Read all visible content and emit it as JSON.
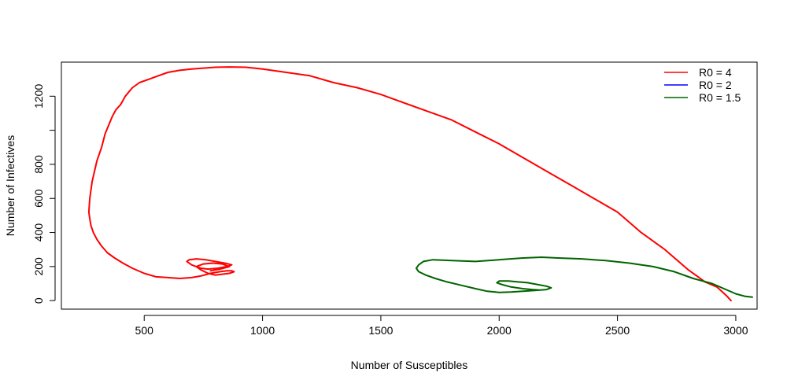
{
  "chart_data": {
    "type": "line",
    "title": "",
    "xlabel": "Number of Susceptibles",
    "ylabel": "Number of Infectives",
    "xlim": [
      150,
      3090
    ],
    "ylim": [
      -50,
      1400
    ],
    "x_ticks": [
      500,
      1000,
      1500,
      2000,
      2500,
      3000
    ],
    "y_ticks": [
      0,
      200,
      400,
      600,
      800,
      1200
    ],
    "y_tick_marks": [
      0,
      200,
      400,
      600,
      800,
      1000,
      1200
    ],
    "grid": false,
    "legend_position": "top-right",
    "series": [
      {
        "name": "R0 = 4",
        "color": "#ff0000",
        "x": [
          2980,
          2960,
          2920,
          2870,
          2800,
          2700,
          2600,
          2500,
          2400,
          2300,
          2200,
          2100,
          2000,
          1900,
          1800,
          1700,
          1600,
          1500,
          1400,
          1300,
          1200,
          1100,
          1000,
          930,
          860,
          800,
          750,
          700,
          650,
          600,
          560,
          520,
          480,
          450,
          420,
          400,
          380,
          365,
          350,
          335,
          320,
          310,
          300,
          290,
          280,
          275,
          270,
          268,
          266,
          270,
          275,
          285,
          300,
          320,
          345,
          375,
          410,
          450,
          500,
          550,
          600,
          650,
          700,
          740,
          780,
          820,
          850,
          870,
          880,
          860,
          830,
          800,
          770,
          740,
          720,
          700,
          680,
          690,
          720,
          760,
          800,
          840,
          870,
          850,
          810,
          770,
          740,
          720,
          750,
          790,
          830,
          860,
          820,
          780
        ],
        "y": [
          0,
          30,
          80,
          110,
          180,
          300,
          400,
          520,
          600,
          680,
          760,
          840,
          920,
          990,
          1060,
          1110,
          1160,
          1210,
          1250,
          1280,
          1320,
          1340,
          1360,
          1370,
          1372,
          1370,
          1365,
          1360,
          1352,
          1340,
          1320,
          1300,
          1280,
          1250,
          1200,
          1150,
          1120,
          1080,
          1030,
          980,
          900,
          860,
          820,
          760,
          700,
          650,
          600,
          560,
          520,
          480,
          440,
          400,
          360,
          320,
          280,
          250,
          220,
          190,
          160,
          140,
          135,
          130,
          135,
          145,
          160,
          170,
          175,
          175,
          170,
          160,
          155,
          150,
          160,
          180,
          200,
          210,
          230,
          240,
          245,
          240,
          230,
          220,
          210,
          200,
          190,
          185,
          190,
          200,
          215,
          220,
          215,
          200,
          185,
          175
        ]
      },
      {
        "name": "R0 = 2",
        "color": "#0000ff",
        "x": [],
        "y": []
      },
      {
        "name": "R0 = 1.5",
        "color": "#006400",
        "x": [
          3070,
          3040,
          3000,
          2950,
          2900,
          2820,
          2740,
          2650,
          2550,
          2450,
          2350,
          2250,
          2180,
          2100,
          2000,
          1900,
          1800,
          1720,
          1680,
          1660,
          1650,
          1660,
          1690,
          1730,
          1780,
          1840,
          1900,
          1950,
          2000,
          2050,
          2100,
          2150,
          2200,
          2220,
          2200,
          2160,
          2120,
          2080,
          2040,
          2000,
          1990,
          2010,
          2050,
          2100,
          2140,
          2170,
          2150
        ],
        "y": [
          20,
          25,
          40,
          70,
          100,
          130,
          170,
          200,
          220,
          235,
          245,
          250,
          255,
          250,
          240,
          230,
          235,
          240,
          230,
          210,
          190,
          170,
          150,
          130,
          110,
          90,
          70,
          55,
          48,
          50,
          55,
          60,
          65,
          75,
          85,
          95,
          105,
          110,
          115,
          115,
          105,
          95,
          80,
          70,
          65,
          62,
          60
        ]
      }
    ]
  }
}
